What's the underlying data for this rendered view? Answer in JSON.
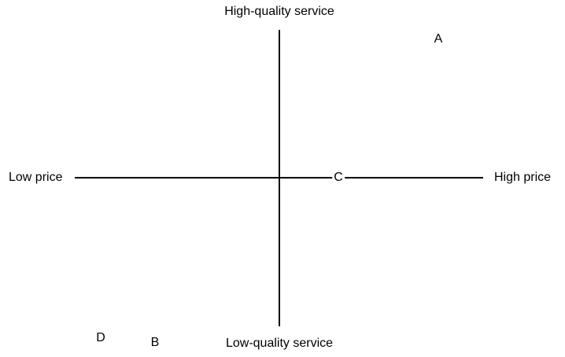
{
  "axes": {
    "top": "High-quality service",
    "bottom": "Low-quality service",
    "left": "Low price",
    "right": "High price"
  },
  "points": [
    {
      "label": "A"
    },
    {
      "label": "B"
    },
    {
      "label": "C"
    },
    {
      "label": "D"
    }
  ]
}
